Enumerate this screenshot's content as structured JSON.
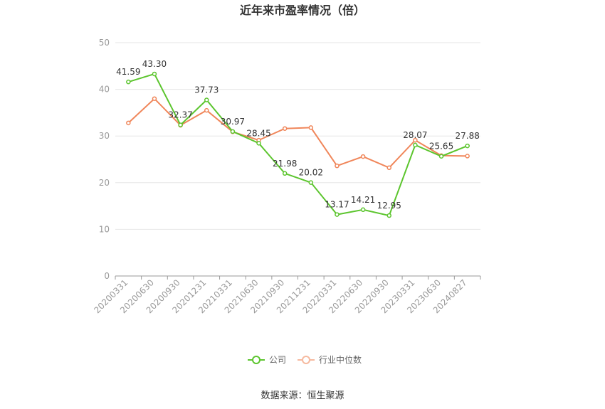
{
  "chart_data": {
    "type": "line",
    "title": "近年来市盈率情况（倍）",
    "categories": [
      "20200331",
      "20200630",
      "20200930",
      "20201231",
      "20210331",
      "20210630",
      "20210930",
      "20211231",
      "20220331",
      "20220630",
      "20220930",
      "20230331",
      "20230630",
      "20240827"
    ],
    "series": [
      {
        "name": "公司",
        "color": "#5cc52e",
        "values": [
          41.59,
          43.3,
          32.37,
          37.73,
          30.97,
          28.45,
          21.98,
          20.02,
          13.17,
          14.21,
          12.95,
          28.07,
          25.65,
          27.88
        ],
        "show_labels": true
      },
      {
        "name": "行业中位数",
        "color": "#f0865a",
        "values": [
          32.8,
          38.0,
          32.3,
          35.5,
          30.9,
          29.1,
          31.6,
          31.8,
          23.6,
          25.6,
          23.2,
          29.1,
          25.8,
          25.7
        ],
        "show_labels": false
      }
    ],
    "y_ticks": [
      "0",
      "10",
      "20",
      "30",
      "40",
      "50"
    ],
    "ylim": [
      0,
      50
    ],
    "grid": true,
    "legend": "bottom-center",
    "source": "数据来源：恒生聚源"
  }
}
